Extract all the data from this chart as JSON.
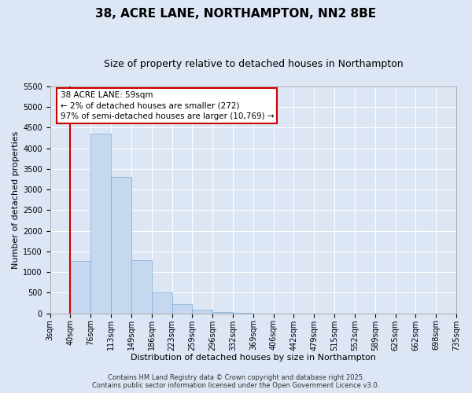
{
  "title": "38, ACRE LANE, NORTHAMPTON, NN2 8BE",
  "subtitle": "Size of property relative to detached houses in Northampton",
  "xlabel": "Distribution of detached houses by size in Northampton",
  "ylabel": "Number of detached properties",
  "bin_labels": [
    "3sqm",
    "40sqm",
    "76sqm",
    "113sqm",
    "149sqm",
    "186sqm",
    "223sqm",
    "259sqm",
    "296sqm",
    "332sqm",
    "369sqm",
    "406sqm",
    "442sqm",
    "479sqm",
    "515sqm",
    "552sqm",
    "589sqm",
    "625sqm",
    "662sqm",
    "698sqm",
    "735sqm"
  ],
  "bar_values": [
    0,
    1270,
    4360,
    3310,
    1285,
    505,
    230,
    90,
    40,
    10,
    0,
    0,
    0,
    0,
    0,
    0,
    0,
    0,
    0,
    0
  ],
  "bar_color": "#c5d8f0",
  "bar_edge_color": "#7badd4",
  "vline_x_idx": 1,
  "vline_color": "#cc0000",
  "annotation_title": "38 ACRE LANE: 59sqm",
  "annotation_line1": "← 2% of detached houses are smaller (272)",
  "annotation_line2": "97% of semi-detached houses are larger (10,769) →",
  "annotation_box_color": "#ffffff",
  "annotation_box_edge": "#cc0000",
  "ylim": [
    0,
    5500
  ],
  "yticks": [
    0,
    500,
    1000,
    1500,
    2000,
    2500,
    3000,
    3500,
    4000,
    4500,
    5000,
    5500
  ],
  "background_color": "#dce6f5",
  "plot_bg_color": "#dce6f5",
  "footer_line1": "Contains HM Land Registry data © Crown copyright and database right 2025.",
  "footer_line2": "Contains public sector information licensed under the Open Government Licence v3.0.",
  "title_fontsize": 11,
  "subtitle_fontsize": 9,
  "axis_label_fontsize": 8,
  "tick_fontsize": 7,
  "footer_fontsize": 6
}
